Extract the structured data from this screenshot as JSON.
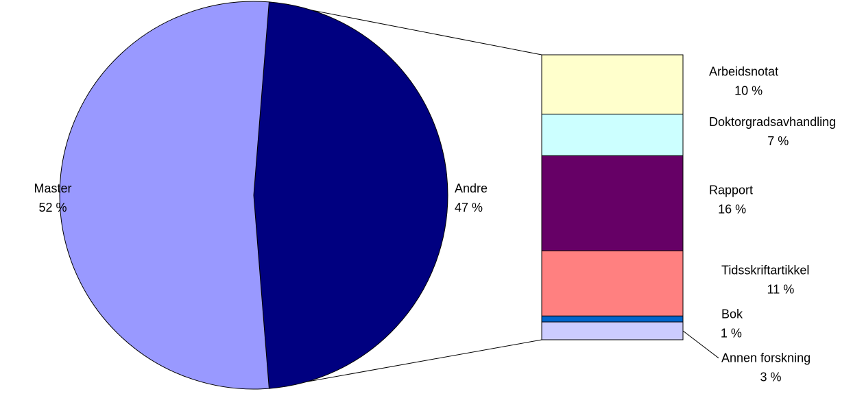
{
  "chart_data": {
    "type": "pie",
    "subtype": "bar-of-pie",
    "pie": {
      "slices": [
        {
          "name": "Master",
          "value": 52,
          "value_label": "52 %",
          "color": "#9999FF"
        },
        {
          "name": "Andre",
          "value": 47,
          "value_label": "47 %",
          "color": "#000080"
        }
      ]
    },
    "breakdown_of": "Andre",
    "bar": {
      "segments": [
        {
          "name": "Arbeidsnotat",
          "value": 10,
          "value_label": "10 %",
          "color": "#FFFFCC"
        },
        {
          "name": "Doktorgradsavhandling",
          "value": 7,
          "value_label": "7 %",
          "color": "#CCFFFF"
        },
        {
          "name": "Rapport",
          "value": 16,
          "value_label": "16 %",
          "color": "#660066"
        },
        {
          "name": "Tidsskriftartikkel",
          "value": 11,
          "value_label": "11 %",
          "color": "#FF8080"
        },
        {
          "name": "Bok",
          "value": 1,
          "value_label": "1 %",
          "color": "#0066CC"
        },
        {
          "name": "Annen forskning",
          "value": 3,
          "value_label": "3 %",
          "color": "#CCCCFF"
        }
      ]
    },
    "grid": false,
    "legend": "none"
  }
}
